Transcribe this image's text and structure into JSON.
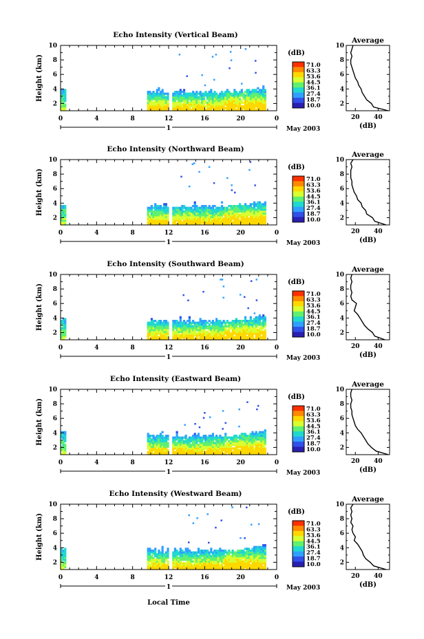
{
  "figure": {
    "xlabel": "Local Time",
    "date_label": "May 2003",
    "ylabel": "Height (km)",
    "day_label": "1"
  },
  "colorbar": {
    "unit": "(dB)",
    "ticks": [
      "71.0",
      "63.3",
      "53.6",
      "44.5",
      "36.1",
      "27.4",
      "18.7",
      "10.0"
    ],
    "colors": [
      "#ff3000",
      "#ff8a00",
      "#ffd800",
      "#d8ff30",
      "#60f070",
      "#20d8d0",
      "#30a0ff",
      "#3050e8",
      "#2a1fb0"
    ]
  },
  "chart_data": [
    {
      "type": "heatmap",
      "title": "Echo Intensity (Vertical Beam)",
      "xlabel": "Local Time",
      "ylabel": "Height (km)",
      "xlim": [
        0,
        24
      ],
      "ylim": [
        1,
        10
      ],
      "xticks": [
        "0",
        "4",
        "8",
        "12",
        "16",
        "20",
        "0"
      ],
      "yticks": [
        "2",
        "4",
        "6",
        "8",
        "10"
      ],
      "profile": {
        "title": "Average",
        "xlabel": "(dB)",
        "xticks": [
          "20",
          "40"
        ],
        "xlim": [
          12,
          50
        ],
        "heights": [
          1.0,
          1.5,
          2.0,
          2.5,
          3.0,
          3.5,
          4.0,
          4.5,
          5.0,
          5.5,
          6.0,
          6.5,
          7.0,
          7.5,
          8.0,
          8.5,
          9.0,
          9.5,
          10.0
        ],
        "values": [
          49,
          36,
          34,
          30,
          28,
          26,
          25,
          23,
          22,
          20,
          19,
          18,
          17,
          16,
          16,
          17,
          16,
          17,
          18
        ]
      }
    },
    {
      "type": "heatmap",
      "title": "Echo Intensity (Northward Beam)",
      "xlabel": "Local Time",
      "ylabel": "Height (km)",
      "xlim": [
        0,
        24
      ],
      "ylim": [
        1,
        10
      ],
      "xticks": [
        "0",
        "4",
        "8",
        "12",
        "16",
        "20",
        "0"
      ],
      "yticks": [
        "2",
        "4",
        "6",
        "8",
        "10"
      ],
      "profile": {
        "title": "Average",
        "xlabel": "(dB)",
        "xticks": [
          "20",
          "40"
        ],
        "xlim": [
          12,
          50
        ],
        "heights": [
          1.0,
          1.5,
          2.0,
          2.5,
          3.0,
          3.5,
          4.0,
          4.5,
          5.0,
          5.5,
          6.0,
          6.5,
          7.0,
          7.5,
          8.0,
          8.5,
          9.0,
          9.5,
          10.0
        ],
        "values": [
          47,
          37,
          35,
          30,
          29,
          26,
          25,
          22,
          21,
          19,
          18,
          17,
          17,
          16,
          16,
          16,
          17,
          16,
          18
        ]
      }
    },
    {
      "type": "heatmap",
      "title": "Echo Intensity (Southward Beam)",
      "xlabel": "Local Time",
      "ylabel": "Height (km)",
      "xlim": [
        0,
        24
      ],
      "ylim": [
        1,
        10
      ],
      "xticks": [
        "0",
        "4",
        "8",
        "12",
        "16",
        "20",
        "0"
      ],
      "yticks": [
        "2",
        "4",
        "6",
        "8",
        "10"
      ],
      "profile": {
        "title": "Average",
        "xlabel": "(dB)",
        "xticks": [
          "20",
          "40"
        ],
        "xlim": [
          12,
          50
        ],
        "heights": [
          1.0,
          1.5,
          2.0,
          2.5,
          3.0,
          3.5,
          4.0,
          4.5,
          5.0,
          5.5,
          6.0,
          6.5,
          7.0,
          7.5,
          8.0,
          8.5,
          9.0,
          9.5,
          10.0
        ],
        "values": [
          46,
          37,
          35,
          31,
          28,
          26,
          24,
          22,
          19,
          20,
          21,
          17,
          16,
          17,
          16,
          16,
          17,
          16,
          17
        ]
      }
    },
    {
      "type": "heatmap",
      "title": "Echo Intensity (Eastward Beam)",
      "xlabel": "Local Time",
      "ylabel": "Height (km)",
      "xlim": [
        0,
        24
      ],
      "ylim": [
        1,
        10
      ],
      "xticks": [
        "0",
        "4",
        "8",
        "12",
        "16",
        "20",
        "0"
      ],
      "yticks": [
        "2",
        "4",
        "6",
        "8",
        "10"
      ],
      "profile": {
        "title": "Average",
        "xlabel": "(dB)",
        "xticks": [
          "20",
          "40"
        ],
        "xlim": [
          12,
          50
        ],
        "heights": [
          1.0,
          1.5,
          2.0,
          2.5,
          3.0,
          3.5,
          4.0,
          4.5,
          5.0,
          5.5,
          6.0,
          6.5,
          7.0,
          7.5,
          8.0,
          8.5,
          9.0,
          9.5,
          10.0
        ],
        "values": [
          49,
          38,
          34,
          31,
          29,
          27,
          25,
          22,
          20,
          19,
          18,
          17,
          17,
          16,
          16,
          17,
          16,
          16,
          17
        ]
      }
    },
    {
      "type": "heatmap",
      "title": "Echo Intensity (Westward Beam)",
      "xlabel": "Local Time",
      "ylabel": "Height (km)",
      "xlim": [
        0,
        24
      ],
      "ylim": [
        1,
        10
      ],
      "xticks": [
        "0",
        "4",
        "8",
        "12",
        "16",
        "20",
        "0"
      ],
      "yticks": [
        "2",
        "4",
        "6",
        "8",
        "10"
      ],
      "profile": {
        "title": "Average",
        "xlabel": "(dB)",
        "xticks": [
          "20",
          "40"
        ],
        "xlim": [
          12,
          50
        ],
        "heights": [
          1.0,
          1.5,
          2.0,
          2.5,
          3.0,
          3.5,
          4.0,
          4.5,
          5.0,
          5.5,
          6.0,
          6.5,
          7.0,
          7.5,
          8.0,
          8.5,
          9.0,
          9.5,
          10.0
        ],
        "values": [
          47,
          36,
          33,
          29,
          27,
          26,
          24,
          22,
          19,
          20,
          18,
          17,
          18,
          16,
          17,
          16,
          17,
          16,
          18
        ]
      }
    }
  ]
}
